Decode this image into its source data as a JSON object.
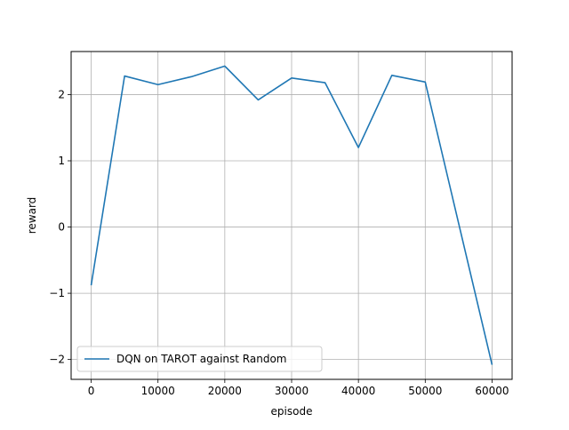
{
  "chart_data": {
    "type": "line",
    "title": "",
    "xlabel": "episode",
    "ylabel": "reward",
    "xlim": [
      -3000,
      63000
    ],
    "ylim": [
      -2.3,
      2.65
    ],
    "xticks": [
      0,
      10000,
      20000,
      30000,
      40000,
      50000,
      60000
    ],
    "xtick_labels": [
      "0",
      "10000",
      "20000",
      "30000",
      "40000",
      "50000",
      "60000"
    ],
    "yticks": [
      -2,
      -1,
      0,
      1,
      2
    ],
    "ytick_labels": [
      "−2",
      "−1",
      "0",
      "1",
      "2"
    ],
    "grid": true,
    "legend_position": "lower-left",
    "series": [
      {
        "name": "DQN on TAROT against Random",
        "color": "#1f77b4",
        "x": [
          0,
          5000,
          10000,
          15000,
          20000,
          25000,
          30000,
          35000,
          40000,
          45000,
          50000,
          60000
        ],
        "y": [
          -0.88,
          2.28,
          2.15,
          2.27,
          2.43,
          1.92,
          2.25,
          2.18,
          1.2,
          2.29,
          2.19,
          -2.08
        ]
      }
    ]
  }
}
